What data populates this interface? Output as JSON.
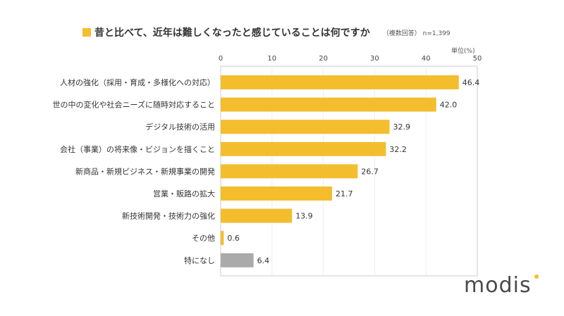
{
  "chart_data": {
    "type": "bar",
    "orientation": "horizontal",
    "title": "昔と比べて、近年は難しくなったと感じていることは何ですか",
    "note": "（複数回答） n=1,399",
    "unit": "単位(%)",
    "xlim": [
      0,
      50
    ],
    "ticks": [
      0,
      10,
      20,
      30,
      40,
      50
    ],
    "categories": [
      "人材の強化（採用・育成・多様化への対応）",
      "世の中の変化や社会ニーズに随時対応すること",
      "デジタル技術の活用",
      "会社（事業）の将来像・ビジョンを描くこと",
      "新商品・新規ビジネス・新規事業の開発",
      "営業・販路の拡大",
      "新技術開発・技術力の強化",
      "その他",
      "特になし"
    ],
    "values": [
      46.4,
      42.0,
      32.9,
      32.2,
      26.7,
      21.7,
      13.9,
      0.6,
      6.4
    ],
    "colors": {
      "main": "#f3bd2e",
      "none": "#aaaaaa"
    },
    "grid": true
  },
  "logo": "modis"
}
